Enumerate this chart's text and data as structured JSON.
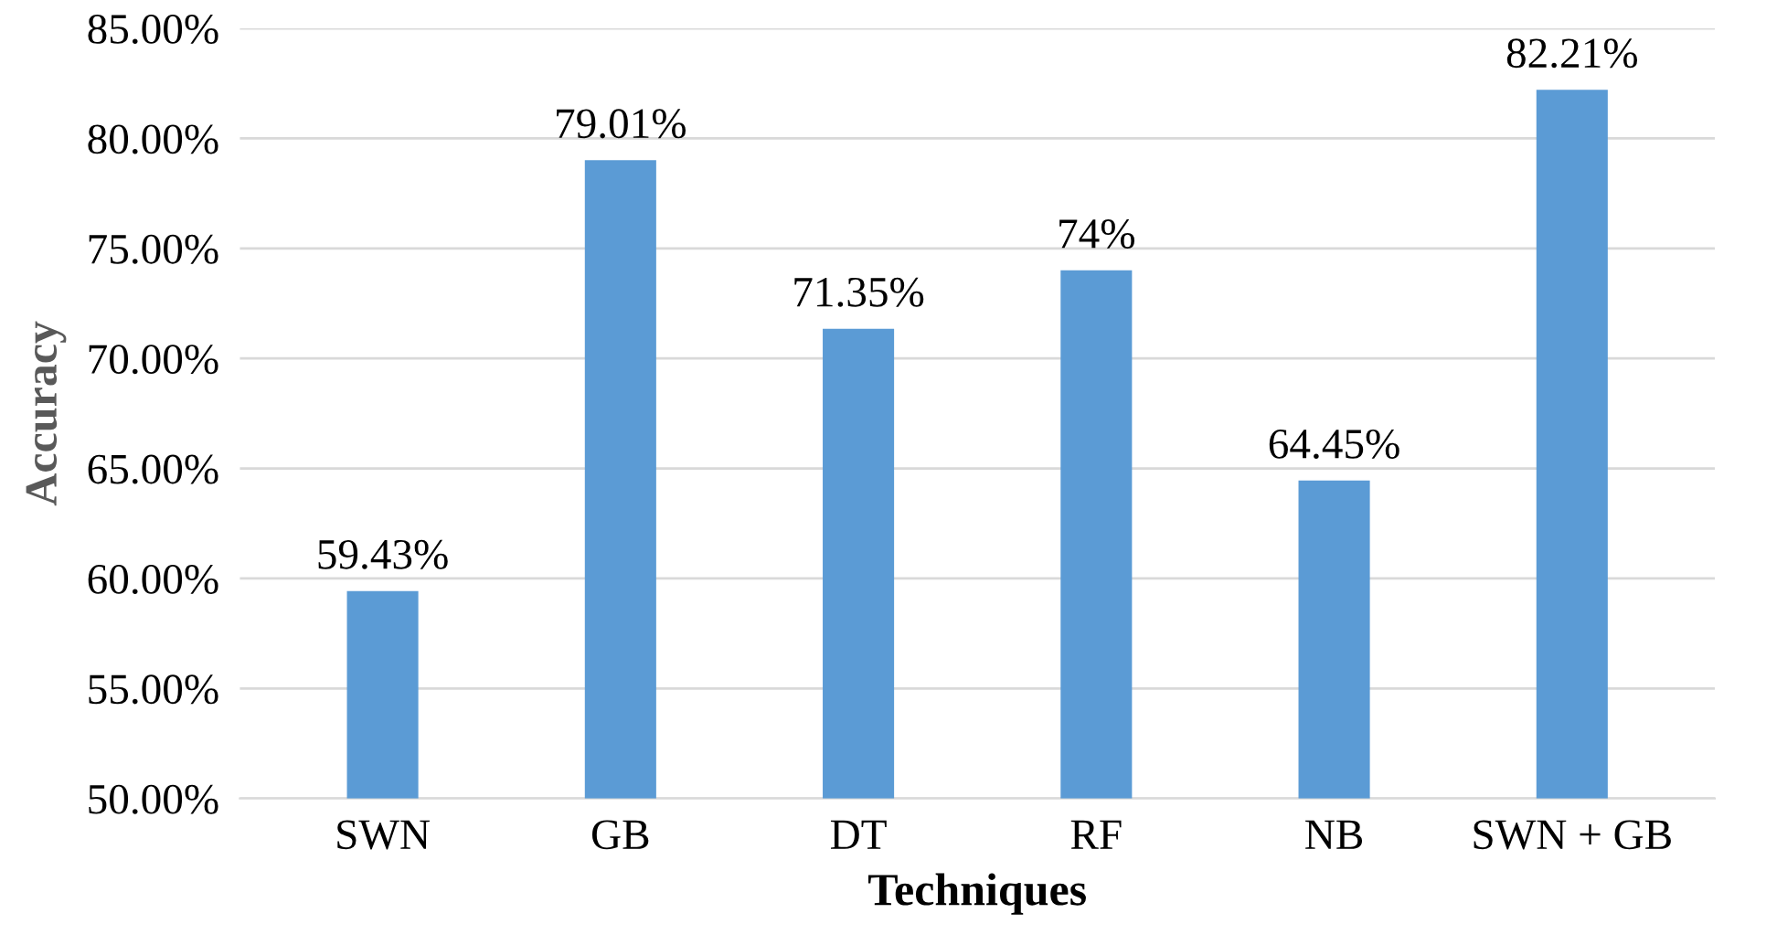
{
  "chart_data": {
    "type": "bar",
    "xlabel": "Techniques",
    "ylabel": "Accuracy",
    "categories": [
      "SWN",
      "GB",
      "DT",
      "RF",
      "NB",
      "SWN + GB"
    ],
    "values": [
      59.43,
      79.01,
      71.35,
      74,
      64.45,
      82.21
    ],
    "value_labels": [
      "59.43%",
      "79.01%",
      "71.35%",
      "74%",
      "64.45%",
      "82.21%"
    ],
    "color": "#5b9bd5",
    "ylim": [
      50,
      85
    ],
    "yticks": [
      {
        "value": 50,
        "label": "50.00%"
      },
      {
        "value": 55,
        "label": "55.00%"
      },
      {
        "value": 60,
        "label": "60.00%"
      },
      {
        "value": 65,
        "label": "65.00%"
      },
      {
        "value": 70,
        "label": "70.00%"
      },
      {
        "value": 75,
        "label": "75.00%"
      },
      {
        "value": 80,
        "label": "80.00%"
      },
      {
        "value": 85,
        "label": "85.00%"
      }
    ],
    "grid": "y"
  }
}
